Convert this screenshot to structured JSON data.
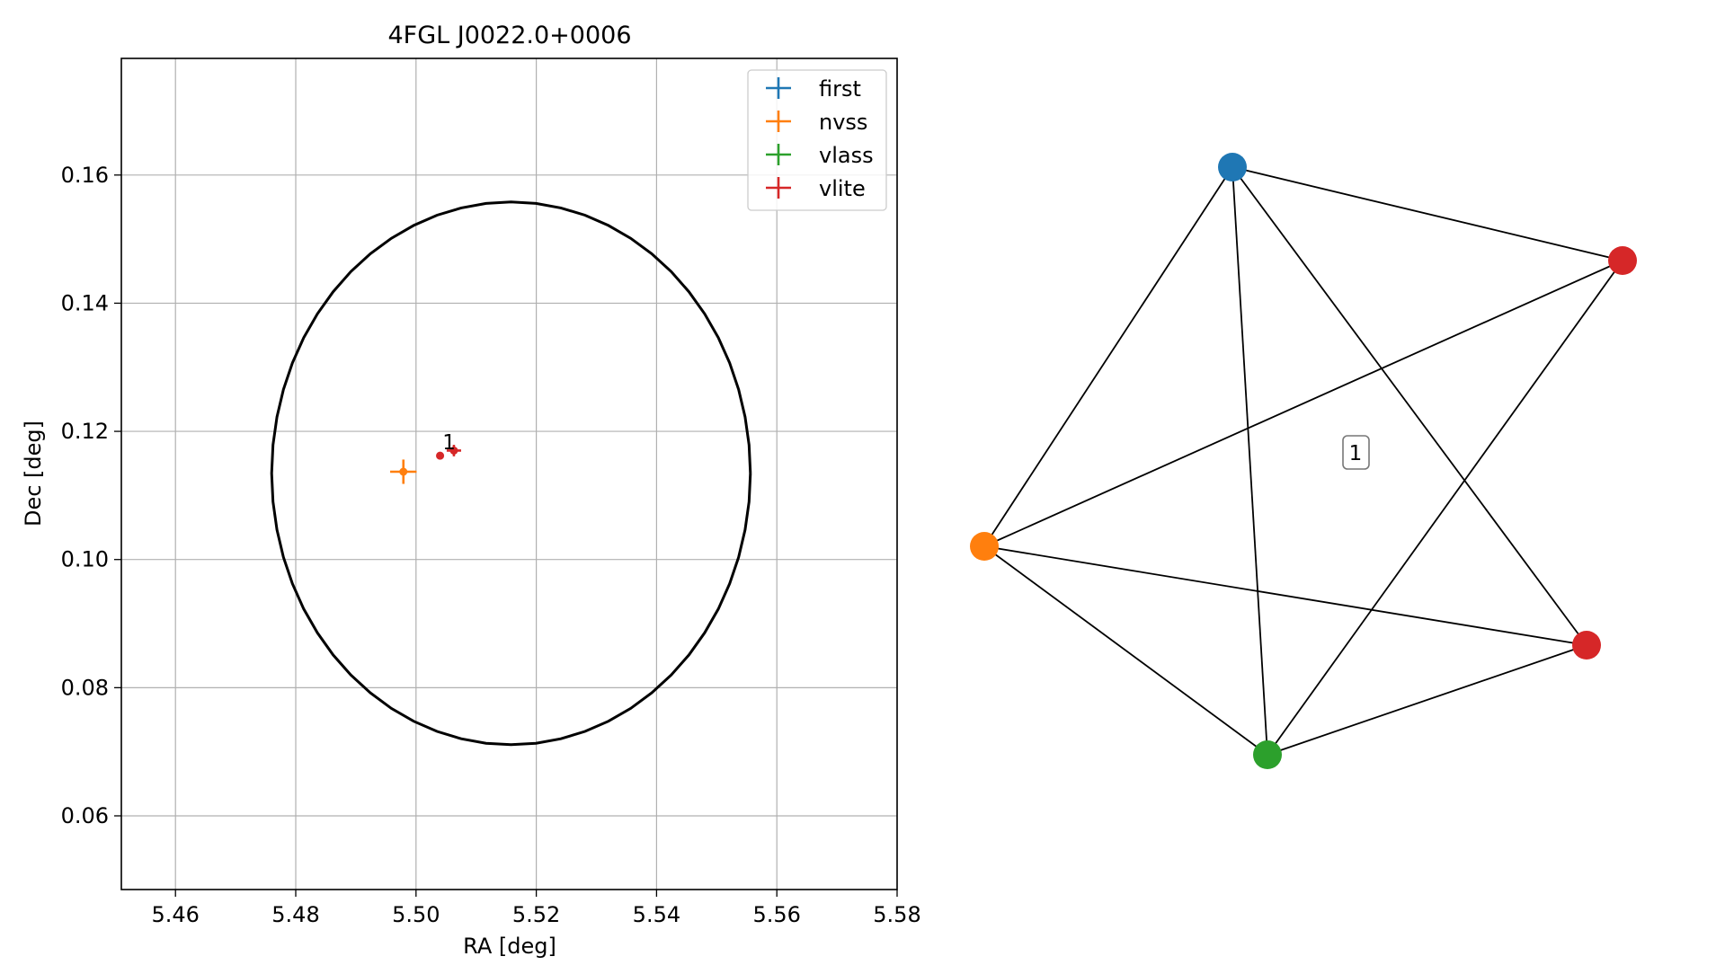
{
  "chart_data": [
    {
      "type": "scatter",
      "title": "4FGL J0022.0+0006",
      "xlabel": "RA [deg]",
      "ylabel": "Dec [deg]",
      "xlim": [
        5.451,
        5.58
      ],
      "ylim": [
        0.0485,
        0.1782
      ],
      "xticks": [
        5.46,
        5.48,
        5.5,
        5.52,
        5.54,
        5.56,
        5.58
      ],
      "xtick_labels": [
        "5.46",
        "5.48",
        "5.50",
        "5.52",
        "5.54",
        "5.56",
        "5.58"
      ],
      "yticks": [
        0.06,
        0.08,
        0.1,
        0.12,
        0.14,
        0.16
      ],
      "ytick_labels": [
        "0.06",
        "0.08",
        "0.10",
        "0.12",
        "0.14",
        "0.16"
      ],
      "grid": true,
      "legend_position": "top-right",
      "series": [
        {
          "name": "first",
          "color": "#1f77b4",
          "points": []
        },
        {
          "name": "nvss",
          "color": "#ff7f0e",
          "points": [
            {
              "x": 5.4979,
              "y": 0.1137,
              "xerr": 0.0022,
              "yerr": 0.0019
            }
          ]
        },
        {
          "name": "vlass",
          "color": "#2ca02c",
          "points": []
        },
        {
          "name": "vlite",
          "color": "#d62728",
          "points": [
            {
              "x": 5.5063,
              "y": 0.117,
              "xerr": 0.0012,
              "yerr": 0.0009
            },
            {
              "x": 5.504,
              "y": 0.1162,
              "xerr": 0.0003,
              "yerr": 0.0003
            }
          ]
        }
      ],
      "annotations": [
        {
          "text": "1",
          "x": 5.5055,
          "y": 0.1183
        }
      ],
      "ellipse": {
        "center": [
          5.5158,
          0.11345
        ],
        "semi_x": 0.0398,
        "semi_y": 0.04235,
        "color": "#000000"
      }
    },
    {
      "type": "network",
      "nodes": [
        {
          "id": "first",
          "color": "#1f77b4"
        },
        {
          "id": "vlite-a",
          "color": "#d62728"
        },
        {
          "id": "nvss",
          "color": "#ff7f0e"
        },
        {
          "id": "vlite-b",
          "color": "#d62728"
        },
        {
          "id": "vlass",
          "color": "#2ca02c"
        }
      ],
      "edges": [
        [
          "first",
          "vlite-a"
        ],
        [
          "first",
          "nvss"
        ],
        [
          "first",
          "vlass"
        ],
        [
          "first",
          "vlite-b"
        ],
        [
          "vlite-a",
          "nvss"
        ],
        [
          "vlite-a",
          "vlass"
        ],
        [
          "nvss",
          "vlite-b"
        ],
        [
          "nvss",
          "vlass"
        ],
        [
          "vlite-b",
          "vlass"
        ]
      ],
      "label": "1"
    }
  ]
}
